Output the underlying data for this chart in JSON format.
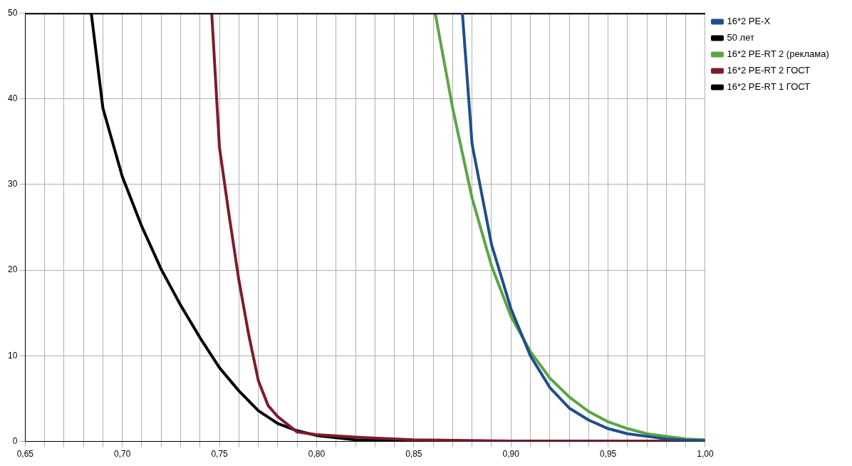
{
  "chart_data": {
    "type": "line",
    "xlim": [
      0.65,
      1.0
    ],
    "ylim": [
      0,
      50
    ],
    "xticks": [
      {
        "value": 0.65,
        "label": "0,65"
      },
      {
        "value": 0.66,
        "label": null
      },
      {
        "value": 0.67,
        "label": null
      },
      {
        "value": 0.68,
        "label": null
      },
      {
        "value": 0.69,
        "label": null
      },
      {
        "value": 0.7,
        "label": "0,70"
      },
      {
        "value": 0.71,
        "label": null
      },
      {
        "value": 0.72,
        "label": null
      },
      {
        "value": 0.73,
        "label": null
      },
      {
        "value": 0.74,
        "label": null
      },
      {
        "value": 0.75,
        "label": "0,75"
      },
      {
        "value": 0.76,
        "label": null
      },
      {
        "value": 0.77,
        "label": null
      },
      {
        "value": 0.78,
        "label": null
      },
      {
        "value": 0.79,
        "label": null
      },
      {
        "value": 0.8,
        "label": "0,80"
      },
      {
        "value": 0.81,
        "label": null
      },
      {
        "value": 0.82,
        "label": null
      },
      {
        "value": 0.83,
        "label": null
      },
      {
        "value": 0.84,
        "label": null
      },
      {
        "value": 0.85,
        "label": "0,85"
      },
      {
        "value": 0.86,
        "label": null
      },
      {
        "value": 0.87,
        "label": null
      },
      {
        "value": 0.88,
        "label": null
      },
      {
        "value": 0.89,
        "label": null
      },
      {
        "value": 0.9,
        "label": "0,90"
      },
      {
        "value": 0.91,
        "label": null
      },
      {
        "value": 0.92,
        "label": null
      },
      {
        "value": 0.93,
        "label": null
      },
      {
        "value": 0.94,
        "label": null
      },
      {
        "value": 0.95,
        "label": "0,95"
      },
      {
        "value": 0.96,
        "label": null
      },
      {
        "value": 0.97,
        "label": null
      },
      {
        "value": 0.98,
        "label": null
      },
      {
        "value": 0.99,
        "label": null
      },
      {
        "value": 1.0,
        "label": "1,00"
      }
    ],
    "yticks": [
      0,
      10,
      20,
      30,
      40,
      50
    ],
    "grid": true,
    "legend": "top right",
    "marker": "none",
    "line_style": "solid",
    "series": [
      {
        "name": "16*2 PE-X",
        "color": "#1f4e8c",
        "x": [
          0.875,
          0.88,
          0.89,
          0.9,
          0.91,
          0.92,
          0.93,
          0.94,
          0.95,
          0.96,
          0.97,
          0.98,
          0.99,
          1.0
        ],
        "values": [
          50,
          34.7,
          23,
          15.5,
          10,
          6.3,
          3.9,
          2.5,
          1.5,
          0.9,
          0.6,
          0.3,
          0.15,
          0.1
        ]
      },
      {
        "name": "50 лет",
        "color": "#000000",
        "x": [
          0.65,
          1.0
        ],
        "values": [
          50,
          50
        ]
      },
      {
        "name": "16*2 PE-RT 2 (реклама)",
        "color": "#5aa544",
        "x": [
          0.861,
          0.87,
          0.88,
          0.89,
          0.9,
          0.91,
          0.92,
          0.93,
          0.94,
          0.95,
          0.96,
          0.97,
          0.98,
          0.99,
          1.0
        ],
        "values": [
          50,
          38.9,
          28.4,
          20.5,
          14.6,
          10.5,
          7.4,
          5.2,
          3.5,
          2.3,
          1.5,
          0.9,
          0.6,
          0.3,
          0.2
        ]
      },
      {
        "name": "16*2 PE-RT 2 ГОСТ",
        "color": "#7f1a2c",
        "x": [
          0.746,
          0.75,
          0.755,
          0.76,
          0.765,
          0.77,
          0.775,
          0.78,
          0.79,
          0.8,
          0.82,
          0.85,
          0.9,
          1.0
        ],
        "values": [
          50,
          34.3,
          26.3,
          18.8,
          12.5,
          7.1,
          4.2,
          2.9,
          1.1,
          0.8,
          0.5,
          0.2,
          0.05,
          0.01
        ]
      },
      {
        "name": "16*2 PE-RT 1 ГОСТ",
        "color": "#000000",
        "x": [
          0.684,
          0.69,
          0.7,
          0.71,
          0.72,
          0.73,
          0.74,
          0.75,
          0.76,
          0.77,
          0.78,
          0.79,
          0.8,
          0.82,
          0.85,
          1.0
        ],
        "values": [
          50,
          38.9,
          30.9,
          25.1,
          20.1,
          15.9,
          12.1,
          8.6,
          5.9,
          3.6,
          2.1,
          1.25,
          0.7,
          0.2,
          0.05,
          0
        ]
      }
    ]
  }
}
